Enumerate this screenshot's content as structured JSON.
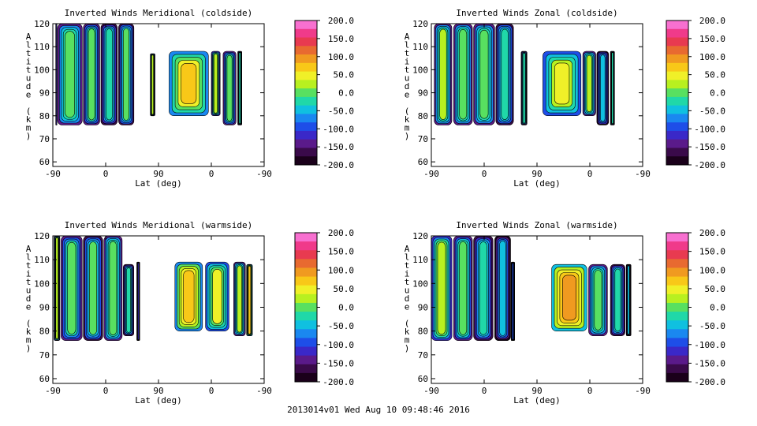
{
  "footer": "2013014v01 Wed Aug 10 09:48:46 2016",
  "colors": {
    "scale": [
      "#1a001a",
      "#3a0a4a",
      "#5a1a8a",
      "#3a28c8",
      "#1e4ee8",
      "#1a88f0",
      "#10c0e0",
      "#20d8a8",
      "#58e060",
      "#b8f020",
      "#f0f028",
      "#f8c818",
      "#f09a20",
      "#e86a30",
      "#e83a50",
      "#f03a8a",
      "#f870d0"
    ],
    "background": "#ffffff"
  },
  "chart_data": [
    {
      "type": "heatmap",
      "title": "Inverted Winds Meridional (coldside)",
      "xlabel": "Lat (deg)",
      "ylabel": "Altitude (km)",
      "x_ticks": [
        "-90",
        "0",
        "90",
        "0",
        "-90"
      ],
      "y_ticks": [
        "60",
        "70",
        "80",
        "90",
        "100",
        "110",
        "120"
      ],
      "ylim": [
        58,
        120
      ],
      "colorbar_ticks": [
        "200.0",
        "150.0",
        "100.0",
        "50.0",
        "0.0",
        "-50.0",
        "-100.0",
        "-150.0",
        "-200.0"
      ],
      "colorbar_range": [
        -200,
        200
      ],
      "blocks": [
        {
          "x": [
            -85,
            -83
          ],
          "y": [
            76,
            120
          ],
          "value": -205
        },
        {
          "x": [
            -82,
            -40
          ],
          "y": [
            76,
            120
          ],
          "value": -80
        },
        {
          "x": [
            -38,
            -10
          ],
          "y": [
            76,
            120
          ],
          "value": -90
        },
        {
          "x": [
            -8,
            20
          ],
          "y": [
            76,
            120
          ],
          "value": -110
        },
        {
          "x": [
            22,
            48
          ],
          "y": [
            76,
            120
          ],
          "value": -95
        },
        {
          "x": [
            76,
            84
          ],
          "y": [
            80,
            107
          ],
          "value": -60
        },
        {
          "x": [
            108,
            175
          ],
          "y": [
            80,
            108
          ],
          "value": -20
        },
        {
          "x": [
            180,
            195
          ],
          "y": [
            80,
            108
          ],
          "value": -60
        },
        {
          "x": [
            200,
            222
          ],
          "y": [
            76,
            108
          ],
          "value": -90
        },
        {
          "x": [
            225,
            232
          ],
          "y": [
            76,
            108
          ],
          "value": -110
        }
      ]
    },
    {
      "type": "heatmap",
      "title": "Inverted Winds Zonal (coldside)",
      "xlabel": "Lat (deg)",
      "ylabel": "Altitude (km)",
      "x_ticks": [
        "-90",
        "0",
        "90",
        "0",
        "-90"
      ],
      "y_ticks": [
        "60",
        "70",
        "80",
        "90",
        "100",
        "110",
        "120"
      ],
      "ylim": [
        58,
        120
      ],
      "colorbar_ticks": [
        "200.0",
        "150.0",
        "100.0",
        "50.0",
        "0.0",
        "-50.0",
        "-100.0",
        "-150.0",
        "-200.0"
      ],
      "colorbar_range": [
        -200,
        200
      ],
      "blocks": [
        {
          "x": [
            -85,
            -55
          ],
          "y": [
            76,
            120
          ],
          "value": -70
        },
        {
          "x": [
            -52,
            -20
          ],
          "y": [
            76,
            120
          ],
          "value": -80
        },
        {
          "x": [
            -18,
            18
          ],
          "y": [
            76,
            120
          ],
          "value": -75
        },
        {
          "x": [
            20,
            50
          ],
          "y": [
            76,
            120
          ],
          "value": -100
        },
        {
          "x": [
            63,
            73
          ],
          "y": [
            76,
            108
          ],
          "value": -110
        },
        {
          "x": [
            100,
            165
          ],
          "y": [
            80,
            108
          ],
          "value": -40
        },
        {
          "x": [
            168,
            190
          ],
          "y": [
            80,
            108
          ],
          "value": -70
        },
        {
          "x": [
            192,
            212
          ],
          "y": [
            76,
            108
          ],
          "value": -120
        },
        {
          "x": [
            215,
            222
          ],
          "y": [
            76,
            108
          ],
          "value": -110
        }
      ]
    },
    {
      "type": "heatmap",
      "title": "Inverted Winds Meridional (warmside)",
      "xlabel": "Lat (deg)",
      "ylabel": "Altitude (km)",
      "x_ticks": [
        "-90",
        "0",
        "90",
        "0",
        "-90"
      ],
      "y_ticks": [
        "60",
        "70",
        "80",
        "90",
        "100",
        "110",
        "120"
      ],
      "ylim": [
        58,
        120
      ],
      "colorbar_ticks": [
        "200.0",
        "150.0",
        "100.0",
        "50.0",
        "0.0",
        "-50.0",
        "-100.0",
        "-150.0",
        "-200.0"
      ],
      "colorbar_range": [
        -200,
        200
      ],
      "blocks": [
        {
          "x": [
            -88,
            -78
          ],
          "y": [
            76,
            120
          ],
          "value": -60
        },
        {
          "x": [
            -76,
            -40
          ],
          "y": [
            76,
            120
          ],
          "value": -90
        },
        {
          "x": [
            -38,
            -5
          ],
          "y": [
            76,
            120
          ],
          "value": -95
        },
        {
          "x": [
            -3,
            28
          ],
          "y": [
            76,
            120
          ],
          "value": -80
        },
        {
          "x": [
            30,
            48
          ],
          "y": [
            78,
            108
          ],
          "value": -110
        },
        {
          "x": [
            53,
            58
          ],
          "y": [
            76,
            109
          ],
          "value": -190
        },
        {
          "x": [
            118,
            165
          ],
          "y": [
            80,
            109
          ],
          "value": -10
        },
        {
          "x": [
            170,
            210
          ],
          "y": [
            80,
            109
          ],
          "value": -45
        },
        {
          "x": [
            218,
            238
          ],
          "y": [
            78,
            109
          ],
          "value": -70
        },
        {
          "x": [
            240,
            250
          ],
          "y": [
            78,
            108
          ],
          "value": -20
        }
      ]
    },
    {
      "type": "heatmap",
      "title": "Inverted Winds Zonal (warmside)",
      "xlabel": "Lat (deg)",
      "ylabel": "Altitude (km)",
      "x_ticks": [
        "-90",
        "0",
        "90",
        "0",
        "-90"
      ],
      "y_ticks": [
        "60",
        "70",
        "80",
        "90",
        "100",
        "110",
        "120"
      ],
      "ylim": [
        58,
        120
      ],
      "colorbar_ticks": [
        "200.0",
        "150.0",
        "100.0",
        "50.0",
        "0.0",
        "-50.0",
        "-100.0",
        "-150.0",
        "-200.0"
      ],
      "colorbar_range": [
        -200,
        200
      ],
      "blocks": [
        {
          "x": [
            -90,
            -55
          ],
          "y": [
            76,
            120
          ],
          "value": -60
        },
        {
          "x": [
            -52,
            -20
          ],
          "y": [
            76,
            120
          ],
          "value": -85
        },
        {
          "x": [
            -18,
            15
          ],
          "y": [
            76,
            120
          ],
          "value": -110
        },
        {
          "x": [
            18,
            45
          ],
          "y": [
            76,
            120
          ],
          "value": -130
        },
        {
          "x": [
            46,
            52
          ],
          "y": [
            76,
            109
          ],
          "value": -180
        },
        {
          "x": [
            115,
            175
          ],
          "y": [
            80,
            108
          ],
          "value": 20
        },
        {
          "x": [
            178,
            210
          ],
          "y": [
            78,
            108
          ],
          "value": -80
        },
        {
          "x": [
            215,
            240
          ],
          "y": [
            78,
            108
          ],
          "value": -110
        },
        {
          "x": [
            242,
            250
          ],
          "y": [
            78,
            108
          ],
          "value": -140
        }
      ]
    }
  ]
}
